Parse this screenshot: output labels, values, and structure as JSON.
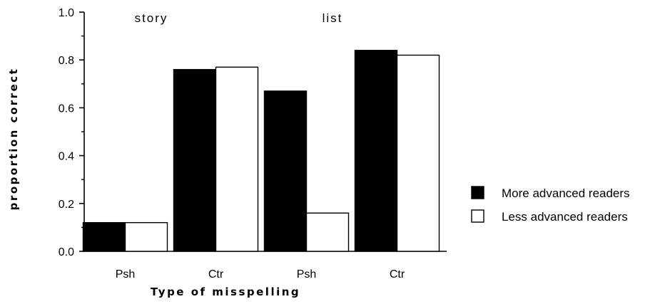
{
  "chart_data": {
    "type": "bar",
    "title": "",
    "xlabel": "Type of misspelling",
    "ylabel": "proportion  correct",
    "ylim": [
      0,
      1.0
    ],
    "yticks": [
      "0.0",
      "0.2",
      "0.4",
      "0.6",
      "0.8",
      "1.0"
    ],
    "categories": [
      "Psh",
      "Ctr",
      "Psh",
      "Ctr"
    ],
    "groups": [
      {
        "label": "story",
        "categories": [
          0,
          1
        ]
      },
      {
        "label": "list",
        "categories": [
          2,
          3
        ]
      }
    ],
    "series": [
      {
        "name": "More advanced readers",
        "color": "#000000",
        "values": [
          0.12,
          0.76,
          0.67,
          0.84
        ]
      },
      {
        "name": "Less advanced readers",
        "color": "#ffffff",
        "values": [
          0.12,
          0.77,
          0.16,
          0.82
        ]
      }
    ],
    "grid": false,
    "legend_position": "right"
  }
}
